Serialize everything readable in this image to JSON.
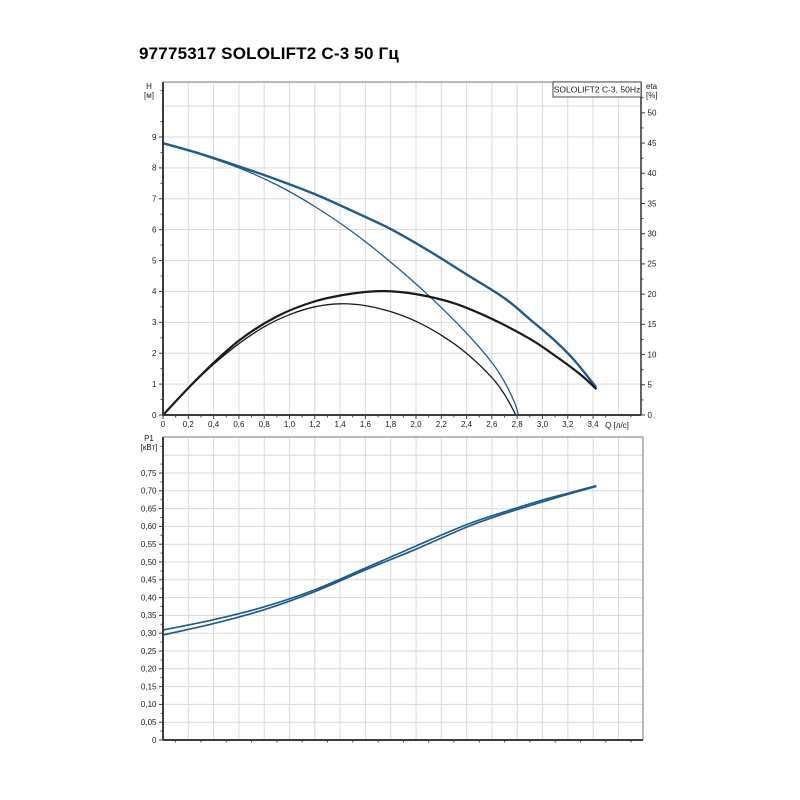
{
  "page_title": "97775317 SOLOLIFT2 C-3 50 Гц",
  "colors": {
    "curve_blue": "#1e5c8e",
    "curve_black": "#1a1a1a",
    "grid": "#d9d9d9",
    "axis": "#3c3c3c",
    "border": "#8f8f8f",
    "legend_border": "#4a4a4a",
    "text": "#1a1a1a",
    "background": "#ffffff"
  },
  "chart_data": [
    {
      "name": "qh-chart",
      "type": "line",
      "title": "SOLOLIFT2 C-3, 50Hz",
      "xlabel": "Q [л/с]",
      "ylabel_lines": [
        "H",
        "[м]"
      ],
      "y2label_lines": [
        "eta",
        "[%]"
      ],
      "xlim": [
        0,
        3.779
      ],
      "ylim": [
        0,
        10.78
      ],
      "y2lim": [
        0,
        55.1
      ],
      "grid": true,
      "legend_position": "top-right",
      "x_major": 0.2,
      "x_minor": 0.1,
      "y_major": 1,
      "y_minor": 0.5,
      "y2_major": 5,
      "y2_minor": 2.5,
      "x_tick_values": [
        0,
        0.2,
        0.4,
        0.6,
        0.8,
        1.0,
        1.2,
        1.4,
        1.6,
        1.8,
        2.0,
        2.2,
        2.4,
        2.6,
        2.8,
        3.0,
        3.2,
        3.4
      ],
      "x_tick_labels": [
        "0",
        "0,2",
        "0,4",
        "0,6",
        "0,8",
        "1,0",
        "1,2",
        "1,4",
        "1,6",
        "1,8",
        "2,0",
        "2,2",
        "2,4",
        "2,6",
        "2,8",
        "3,0",
        "3,2",
        "3,4"
      ],
      "y_tick_values": [
        0,
        1,
        2,
        3,
        4,
        5,
        6,
        7,
        8,
        9
      ],
      "y_tick_labels": [
        "0",
        "1",
        "2",
        "3",
        "4",
        "5",
        "6",
        "7",
        "8",
        "9"
      ],
      "y2_tick_values": [
        0,
        5,
        10,
        15,
        20,
        25,
        30,
        35,
        40,
        45,
        50
      ],
      "y2_tick_labels": [
        "0",
        "5",
        "10",
        "15",
        "20",
        "25",
        "30",
        "35",
        "40",
        "45",
        "50"
      ],
      "series": [
        {
          "name": "head-curve-1",
          "axis": "y",
          "color": "curve_blue",
          "width": 2.4,
          "points": [
            [
              0,
              8.8
            ],
            [
              0.3,
              8.45
            ],
            [
              0.6,
              8.05
            ],
            [
              0.9,
              7.62
            ],
            [
              1.2,
              7.15
            ],
            [
              1.5,
              6.6
            ],
            [
              1.8,
              6.02
            ],
            [
              2.1,
              5.32
            ],
            [
              2.4,
              4.55
            ],
            [
              2.7,
              3.78
            ],
            [
              2.9,
              3.1
            ],
            [
              3.1,
              2.4
            ],
            [
              3.25,
              1.78
            ],
            [
              3.42,
              0.92
            ]
          ]
        },
        {
          "name": "head-curve-2",
          "axis": "y",
          "color": "curve_blue",
          "width": 1.3,
          "points": [
            [
              0,
              8.8
            ],
            [
              0.3,
              8.43
            ],
            [
              0.6,
              8.0
            ],
            [
              0.9,
              7.45
            ],
            [
              1.2,
              6.75
            ],
            [
              1.5,
              5.92
            ],
            [
              1.8,
              4.95
            ],
            [
              2.1,
              3.87
            ],
            [
              2.4,
              2.65
            ],
            [
              2.6,
              1.7
            ],
            [
              2.7,
              1.07
            ],
            [
              2.78,
              0.4
            ],
            [
              2.81,
              0
            ]
          ]
        },
        {
          "name": "efficiency-curve-1",
          "axis": "y2",
          "color": "curve_black",
          "width": 1.3,
          "points": [
            [
              0,
              0
            ],
            [
              0.2,
              4.4
            ],
            [
              0.4,
              8.4
            ],
            [
              0.6,
              11.8
            ],
            [
              0.8,
              14.6
            ],
            [
              1.0,
              16.6
            ],
            [
              1.2,
              17.9
            ],
            [
              1.4,
              18.4
            ],
            [
              1.6,
              18.1
            ],
            [
              1.8,
              17.1
            ],
            [
              2.0,
              15.5
            ],
            [
              2.2,
              13.2
            ],
            [
              2.4,
              10.2
            ],
            [
              2.6,
              6.2
            ],
            [
              2.7,
              3.4
            ],
            [
              2.79,
              0
            ]
          ]
        },
        {
          "name": "efficiency-curve-2",
          "axis": "y2",
          "color": "curve_black",
          "width": 2.2,
          "points": [
            [
              0,
              0
            ],
            [
              0.3,
              6.6
            ],
            [
              0.6,
              12.3
            ],
            [
              0.9,
              16.3
            ],
            [
              1.2,
              18.8
            ],
            [
              1.5,
              20.1
            ],
            [
              1.75,
              20.5
            ],
            [
              2.0,
              20.0
            ],
            [
              2.3,
              18.5
            ],
            [
              2.6,
              15.9
            ],
            [
              2.9,
              12.6
            ],
            [
              3.1,
              9.8
            ],
            [
              3.3,
              6.7
            ],
            [
              3.42,
              4.4
            ]
          ]
        }
      ]
    },
    {
      "name": "power-chart",
      "type": "line",
      "title": "",
      "xlabel": "",
      "ylabel_lines": [
        "P1",
        "[кВт]"
      ],
      "xlim": [
        0,
        3.794
      ],
      "ylim": [
        0,
        0.8511
      ],
      "grid": true,
      "x_major": 0.2,
      "x_minor": 0.1,
      "y_major": 0.05,
      "y_minor": 0.025,
      "x_tick_values": [],
      "x_tick_labels": [],
      "y_tick_values": [
        0,
        0.05,
        0.1,
        0.15,
        0.2,
        0.25,
        0.3,
        0.35,
        0.4,
        0.45,
        0.5,
        0.55,
        0.6,
        0.65,
        0.7,
        0.75
      ],
      "y_tick_labels": [
        "0",
        "0,05",
        "0,10",
        "0,15",
        "0,20",
        "0,25",
        "0,30",
        "0,35",
        "0,40",
        "0,45",
        "0,50",
        "0,55",
        "0,60",
        "0,65",
        "0,70",
        "0,75"
      ],
      "series": [
        {
          "name": "power-curve-1",
          "axis": "y",
          "color": "curve_blue",
          "width": 1.7,
          "points": [
            [
              0,
              0.309
            ],
            [
              0.4,
              0.338
            ],
            [
              0.8,
              0.374
            ],
            [
              1.2,
              0.422
            ],
            [
              1.6,
              0.483
            ],
            [
              2.0,
              0.545
            ],
            [
              2.4,
              0.605
            ],
            [
              2.7,
              0.641
            ],
            [
              3.0,
              0.674
            ],
            [
              3.2,
              0.693
            ],
            [
              3.42,
              0.714
            ]
          ]
        },
        {
          "name": "power-curve-2",
          "axis": "y",
          "color": "curve_blue",
          "width": 1.7,
          "points": [
            [
              0,
              0.295
            ],
            [
              0.4,
              0.327
            ],
            [
              0.8,
              0.366
            ],
            [
              1.2,
              0.417
            ],
            [
              1.6,
              0.478
            ],
            [
              2.0,
              0.536
            ],
            [
              2.4,
              0.598
            ],
            [
              2.7,
              0.636
            ],
            [
              3.0,
              0.669
            ],
            [
              3.2,
              0.69
            ],
            [
              3.42,
              0.712
            ]
          ]
        }
      ]
    }
  ]
}
